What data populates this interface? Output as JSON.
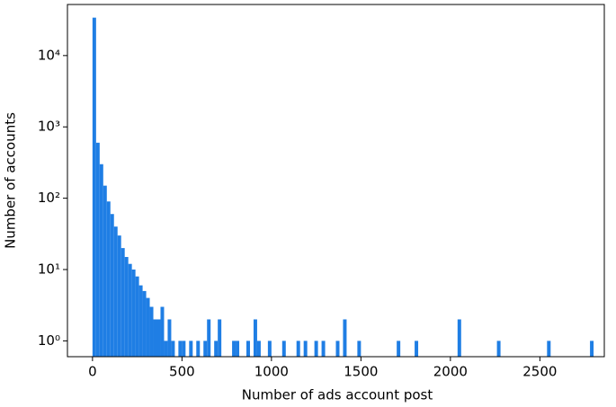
{
  "chart_data": {
    "type": "histogram",
    "x_label": "Number of ads account post",
    "y_label": "Number of accounts",
    "yscale": "log",
    "color": "#1f7ee4",
    "bins": [
      0,
      20,
      40,
      60,
      80,
      100,
      120,
      140,
      160,
      180,
      200,
      220,
      240,
      260,
      280,
      300,
      320,
      340,
      360,
      380,
      400,
      420,
      440,
      460,
      480,
      500,
      520,
      540,
      560,
      580,
      600,
      620,
      640,
      660,
      680,
      700,
      720,
      740,
      760,
      780,
      800,
      820,
      840,
      860,
      880,
      900,
      920,
      940,
      960,
      980,
      1000,
      1020,
      1040,
      1060,
      1080,
      1100,
      1120,
      1140,
      1160,
      1180,
      1200,
      1220,
      1240,
      1260,
      1280,
      1300,
      1320,
      1340,
      1360,
      1380,
      1400,
      1420,
      1440,
      1460,
      1480,
      1500,
      1520,
      1540,
      1560,
      1580,
      1600,
      1620,
      1640,
      1660,
      1680,
      1700,
      1720,
      1740,
      1760,
      1780,
      1800,
      1820,
      1840,
      1860,
      1880,
      1900,
      1920,
      1940,
      1960,
      1980,
      2000,
      2020,
      2040,
      2060,
      2080,
      2100,
      2120,
      2140,
      2160,
      2180,
      2200,
      2220,
      2240,
      2260,
      2280,
      2300,
      2320,
      2340,
      2360,
      2380,
      2400,
      2420,
      2440,
      2460,
      2480,
      2500,
      2520,
      2540,
      2560,
      2580,
      2600,
      2620,
      2640,
      2660,
      2680,
      2700,
      2720,
      2740,
      2760,
      2780,
      2800
    ],
    "values": [
      34000,
      600,
      300,
      150,
      90,
      60,
      40,
      30,
      20,
      15,
      12,
      10,
      8,
      6,
      5,
      4,
      3,
      2,
      2,
      3,
      1,
      2,
      1,
      0,
      1,
      1,
      0,
      1,
      0,
      1,
      0,
      1,
      2,
      0,
      1,
      2,
      0,
      0,
      0,
      1,
      1,
      0,
      0,
      1,
      0,
      2,
      1,
      0,
      0,
      1,
      0,
      0,
      0,
      1,
      0,
      0,
      0,
      1,
      0,
      1,
      0,
      0,
      1,
      0,
      1,
      0,
      0,
      0,
      1,
      0,
      2,
      0,
      0,
      0,
      1,
      0,
      0,
      0,
      0,
      0,
      0,
      0,
      0,
      0,
      0,
      1,
      0,
      0,
      0,
      0,
      1,
      0,
      0,
      0,
      0,
      0,
      0,
      0,
      0,
      0,
      0,
      0,
      2,
      0,
      0,
      0,
      0,
      0,
      0,
      0,
      0,
      0,
      0,
      1,
      0,
      0,
      0,
      0,
      0,
      0,
      0,
      0,
      0,
      0,
      0,
      0,
      0,
      1,
      0,
      0,
      0,
      0,
      0,
      0,
      0,
      0,
      0,
      0,
      0,
      1
    ],
    "xlim": [
      -140,
      2860
    ],
    "ylim": [
      0.6,
      52000
    ],
    "xticks": [
      0,
      500,
      1000,
      1500,
      2000,
      2500
    ],
    "yticks": [
      {
        "value": 1,
        "label": "10⁰"
      },
      {
        "value": 10,
        "label": "10¹"
      },
      {
        "value": 100,
        "label": "10²"
      },
      {
        "value": 1000,
        "label": "10³"
      },
      {
        "value": 10000,
        "label": "10⁴"
      }
    ]
  }
}
